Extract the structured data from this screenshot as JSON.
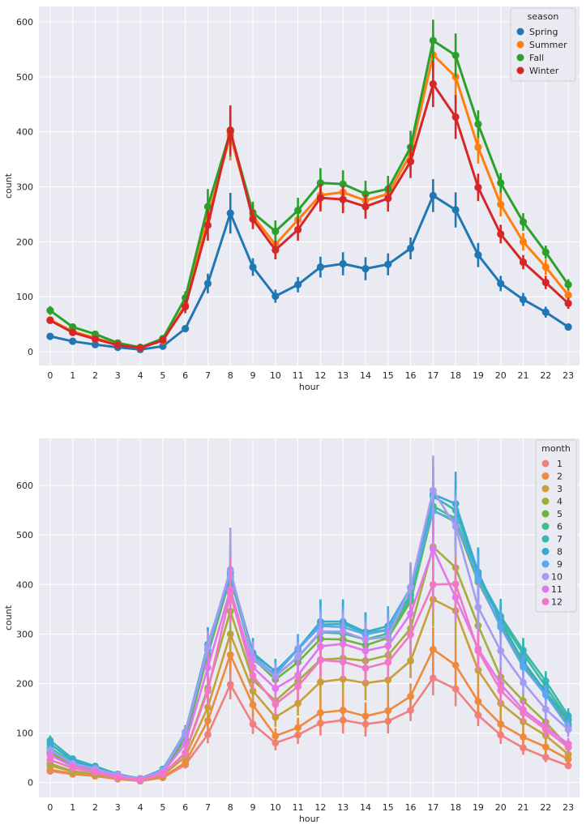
{
  "chart_data": [
    {
      "type": "line",
      "xlabel": "hour",
      "ylabel": "count",
      "ylim": [
        -25,
        628
      ],
      "yticks": [
        0,
        100,
        200,
        300,
        400,
        500,
        600
      ],
      "x": [
        "0",
        "1",
        "2",
        "3",
        "4",
        "5",
        "6",
        "7",
        "8",
        "9",
        "10",
        "11",
        "12",
        "13",
        "14",
        "15",
        "16",
        "17",
        "18",
        "19",
        "20",
        "21",
        "22",
        "23"
      ],
      "grid": true,
      "legend": {
        "title": "season",
        "placement": "top-right"
      },
      "series": [
        {
          "name": "Spring",
          "color": "#1f77b4",
          "values": [
            28,
            19,
            13,
            8,
            4,
            10,
            42,
            124,
            252,
            154,
            101,
            122,
            154,
            160,
            151,
            159,
            188,
            284,
            258,
            176,
            124,
            95,
            72,
            45
          ],
          "err": [
            4,
            3,
            3,
            2,
            1,
            3,
            6,
            18,
            37,
            16,
            12,
            14,
            19,
            21,
            21,
            20,
            20,
            30,
            32,
            22,
            14,
            12,
            10,
            6
          ]
        },
        {
          "name": "Summer",
          "color": "#ff7f0e",
          "values": [
            58,
            37,
            25,
            13,
            7,
            20,
            85,
            245,
            393,
            247,
            195,
            240,
            285,
            290,
            275,
            287,
            360,
            540,
            500,
            372,
            268,
            200,
            154,
            103
          ],
          "err": [
            6,
            5,
            4,
            3,
            2,
            4,
            12,
            26,
            45,
            18,
            17,
            20,
            25,
            25,
            23,
            24,
            30,
            42,
            45,
            30,
            22,
            16,
            14,
            10
          ]
        },
        {
          "name": "Fall",
          "color": "#2ca02c",
          "values": [
            75,
            45,
            32,
            16,
            8,
            24,
            98,
            264,
            400,
            253,
            219,
            257,
            307,
            305,
            287,
            296,
            372,
            566,
            539,
            414,
            307,
            236,
            181,
            122
          ],
          "err": [
            8,
            5,
            4,
            3,
            2,
            4,
            12,
            32,
            45,
            20,
            20,
            23,
            27,
            25,
            24,
            24,
            30,
            38,
            40,
            25,
            18,
            16,
            12,
            10
          ]
        },
        {
          "name": "Winter",
          "color": "#d62728",
          "values": [
            57,
            35,
            23,
            12,
            7,
            21,
            82,
            230,
            403,
            241,
            185,
            222,
            280,
            277,
            264,
            279,
            346,
            487,
            427,
            299,
            214,
            163,
            126,
            88
          ],
          "err": [
            6,
            5,
            4,
            3,
            2,
            4,
            12,
            28,
            45,
            18,
            17,
            20,
            25,
            25,
            22,
            24,
            30,
            42,
            40,
            25,
            17,
            13,
            12,
            10
          ]
        }
      ]
    },
    {
      "type": "line",
      "xlabel": "hour",
      "ylabel": "count",
      "ylim": [
        -30,
        695
      ],
      "yticks": [
        0,
        100,
        200,
        300,
        400,
        500,
        600
      ],
      "x": [
        "0",
        "1",
        "2",
        "3",
        "4",
        "5",
        "6",
        "7",
        "8",
        "9",
        "10",
        "11",
        "12",
        "13",
        "14",
        "15",
        "16",
        "17",
        "18",
        "19",
        "20",
        "21",
        "22",
        "23"
      ],
      "grid": true,
      "legend": {
        "title": "month",
        "placement": "top-right"
      },
      "series": [
        {
          "name": "1",
          "color": "#f08080",
          "values": [
            23,
            17,
            13,
            7,
            3,
            10,
            36,
            97,
            198,
            118,
            80,
            96,
            120,
            126,
            118,
            124,
            146,
            211,
            189,
            136,
            96,
            70,
            51,
            34
          ],
          "err": [
            5,
            4,
            3,
            2,
            1,
            3,
            8,
            18,
            30,
            20,
            15,
            18,
            25,
            27,
            25,
            25,
            22,
            35,
            35,
            22,
            18,
            14,
            10,
            7
          ]
        },
        {
          "name": "2",
          "color": "#ee8a3c",
          "values": [
            26,
            18,
            14,
            8,
            4,
            11,
            40,
            125,
            258,
            157,
            94,
            111,
            141,
            146,
            134,
            145,
            174,
            269,
            237,
            164,
            118,
            92,
            72,
            47
          ],
          "err": [
            5,
            4,
            3,
            2,
            1,
            3,
            8,
            20,
            40,
            22,
            16,
            20,
            28,
            30,
            28,
            28,
            26,
            45,
            45,
            28,
            20,
            15,
            12,
            8
          ]
        },
        {
          "name": "3",
          "color": "#c8a03a",
          "values": [
            34,
            22,
            16,
            9,
            5,
            15,
            52,
            152,
            300,
            185,
            132,
            160,
            203,
            209,
            201,
            207,
            246,
            370,
            347,
            227,
            160,
            123,
            95,
            57
          ],
          "err": [
            6,
            4,
            3,
            2,
            1,
            3,
            10,
            25,
            45,
            25,
            20,
            25,
            35,
            35,
            35,
            35,
            35,
            55,
            70,
            35,
            25,
            20,
            15,
            10
          ]
        },
        {
          "name": "4",
          "color": "#a4ac3c",
          "values": [
            38,
            23,
            17,
            10,
            5,
            16,
            60,
            191,
            346,
            207,
            165,
            205,
            248,
            251,
            246,
            257,
            311,
            476,
            434,
            317,
            213,
            165,
            122,
            72
          ],
          "err": [
            6,
            4,
            3,
            2,
            1,
            3,
            10,
            28,
            50,
            25,
            20,
            25,
            35,
            35,
            35,
            35,
            35,
            55,
            80,
            40,
            30,
            20,
            15,
            10
          ]
        },
        {
          "name": "5",
          "color": "#6db33f",
          "values": [
            60,
            37,
            26,
            14,
            7,
            21,
            88,
            258,
            414,
            251,
            208,
            243,
            290,
            289,
            277,
            292,
            366,
            550,
            526,
            405,
            318,
            239,
            180,
            118
          ],
          "err": [
            8,
            6,
            4,
            3,
            2,
            4,
            14,
            30,
            60,
            30,
            25,
            30,
            40,
            40,
            35,
            40,
            45,
            60,
            60,
            50,
            35,
            25,
            20,
            15
          ]
        },
        {
          "name": "6",
          "color": "#3ebd8c",
          "values": [
            70,
            40,
            28,
            15,
            7,
            24,
            95,
            268,
            416,
            248,
            215,
            253,
            303,
            301,
            289,
            301,
            371,
            558,
            533,
            413,
            330,
            260,
            194,
            128
          ],
          "err": [
            8,
            6,
            4,
            3,
            2,
            4,
            14,
            30,
            60,
            30,
            25,
            30,
            40,
            40,
            35,
            40,
            45,
            60,
            60,
            50,
            35,
            25,
            20,
            15
          ]
        },
        {
          "name": "7",
          "color": "#36b8b0",
          "values": [
            85,
            48,
            33,
            17,
            8,
            27,
            100,
            278,
            417,
            258,
            225,
            268,
            319,
            320,
            302,
            309,
            379,
            578,
            550,
            419,
            336,
            267,
            205,
            135
          ],
          "err": [
            10,
            6,
            4,
            3,
            2,
            4,
            14,
            35,
            60,
            30,
            25,
            30,
            45,
            45,
            40,
            40,
            45,
            60,
            60,
            50,
            35,
            25,
            20,
            15
          ]
        },
        {
          "name": "8",
          "color": "#39a9d3",
          "values": [
            78,
            44,
            31,
            16,
            8,
            26,
            102,
            279,
            424,
            262,
            224,
            270,
            325,
            325,
            304,
            316,
            393,
            582,
            563,
            425,
            325,
            245,
            183,
            126
          ],
          "err": [
            10,
            6,
            4,
            3,
            2,
            4,
            14,
            35,
            60,
            30,
            25,
            30,
            45,
            45,
            40,
            40,
            45,
            60,
            65,
            50,
            35,
            25,
            20,
            15
          ]
        },
        {
          "name": "9",
          "color": "#58a9ef",
          "values": [
            65,
            39,
            28,
            15,
            7,
            25,
            100,
            268,
            425,
            253,
            218,
            269,
            316,
            314,
            299,
            308,
            394,
            548,
            530,
            410,
            314,
            233,
            177,
            113
          ],
          "err": [
            8,
            6,
            4,
            3,
            2,
            4,
            14,
            32,
            60,
            30,
            25,
            30,
            40,
            40,
            35,
            40,
            45,
            60,
            60,
            50,
            35,
            25,
            20,
            15
          ]
        },
        {
          "name": "10",
          "color": "#a59cf2",
          "values": [
            66,
            38,
            28,
            15,
            7,
            24,
            100,
            274,
            430,
            250,
            214,
            254,
            305,
            305,
            289,
            294,
            395,
            590,
            517,
            354,
            266,
            202,
            148,
            107
          ],
          "err": [
            8,
            6,
            4,
            3,
            2,
            4,
            14,
            32,
            85,
            35,
            25,
            30,
            40,
            40,
            35,
            40,
            50,
            70,
            60,
            50,
            35,
            25,
            20,
            15
          ]
        },
        {
          "name": "11",
          "color": "#e177ef",
          "values": [
            55,
            33,
            23,
            12,
            6,
            20,
            78,
            232,
            390,
            233,
            190,
            217,
            275,
            280,
            266,
            276,
            341,
            472,
            374,
            270,
            199,
            147,
            112,
            78
          ],
          "err": [
            7,
            5,
            4,
            3,
            2,
            4,
            12,
            30,
            70,
            30,
            22,
            28,
            35,
            35,
            30,
            35,
            40,
            60,
            50,
            40,
            30,
            20,
            15,
            12
          ]
        },
        {
          "name": "12",
          "color": "#f277c4",
          "values": [
            46,
            29,
            20,
            10,
            5,
            17,
            60,
            185,
            382,
            216,
            158,
            194,
            247,
            244,
            231,
            243,
            299,
            400,
            401,
            266,
            186,
            141,
            107,
            71
          ],
          "err": [
            7,
            5,
            4,
            3,
            2,
            4,
            12,
            30,
            60,
            30,
            22,
            28,
            35,
            35,
            30,
            35,
            40,
            55,
            50,
            40,
            30,
            20,
            15,
            12
          ]
        }
      ]
    }
  ]
}
